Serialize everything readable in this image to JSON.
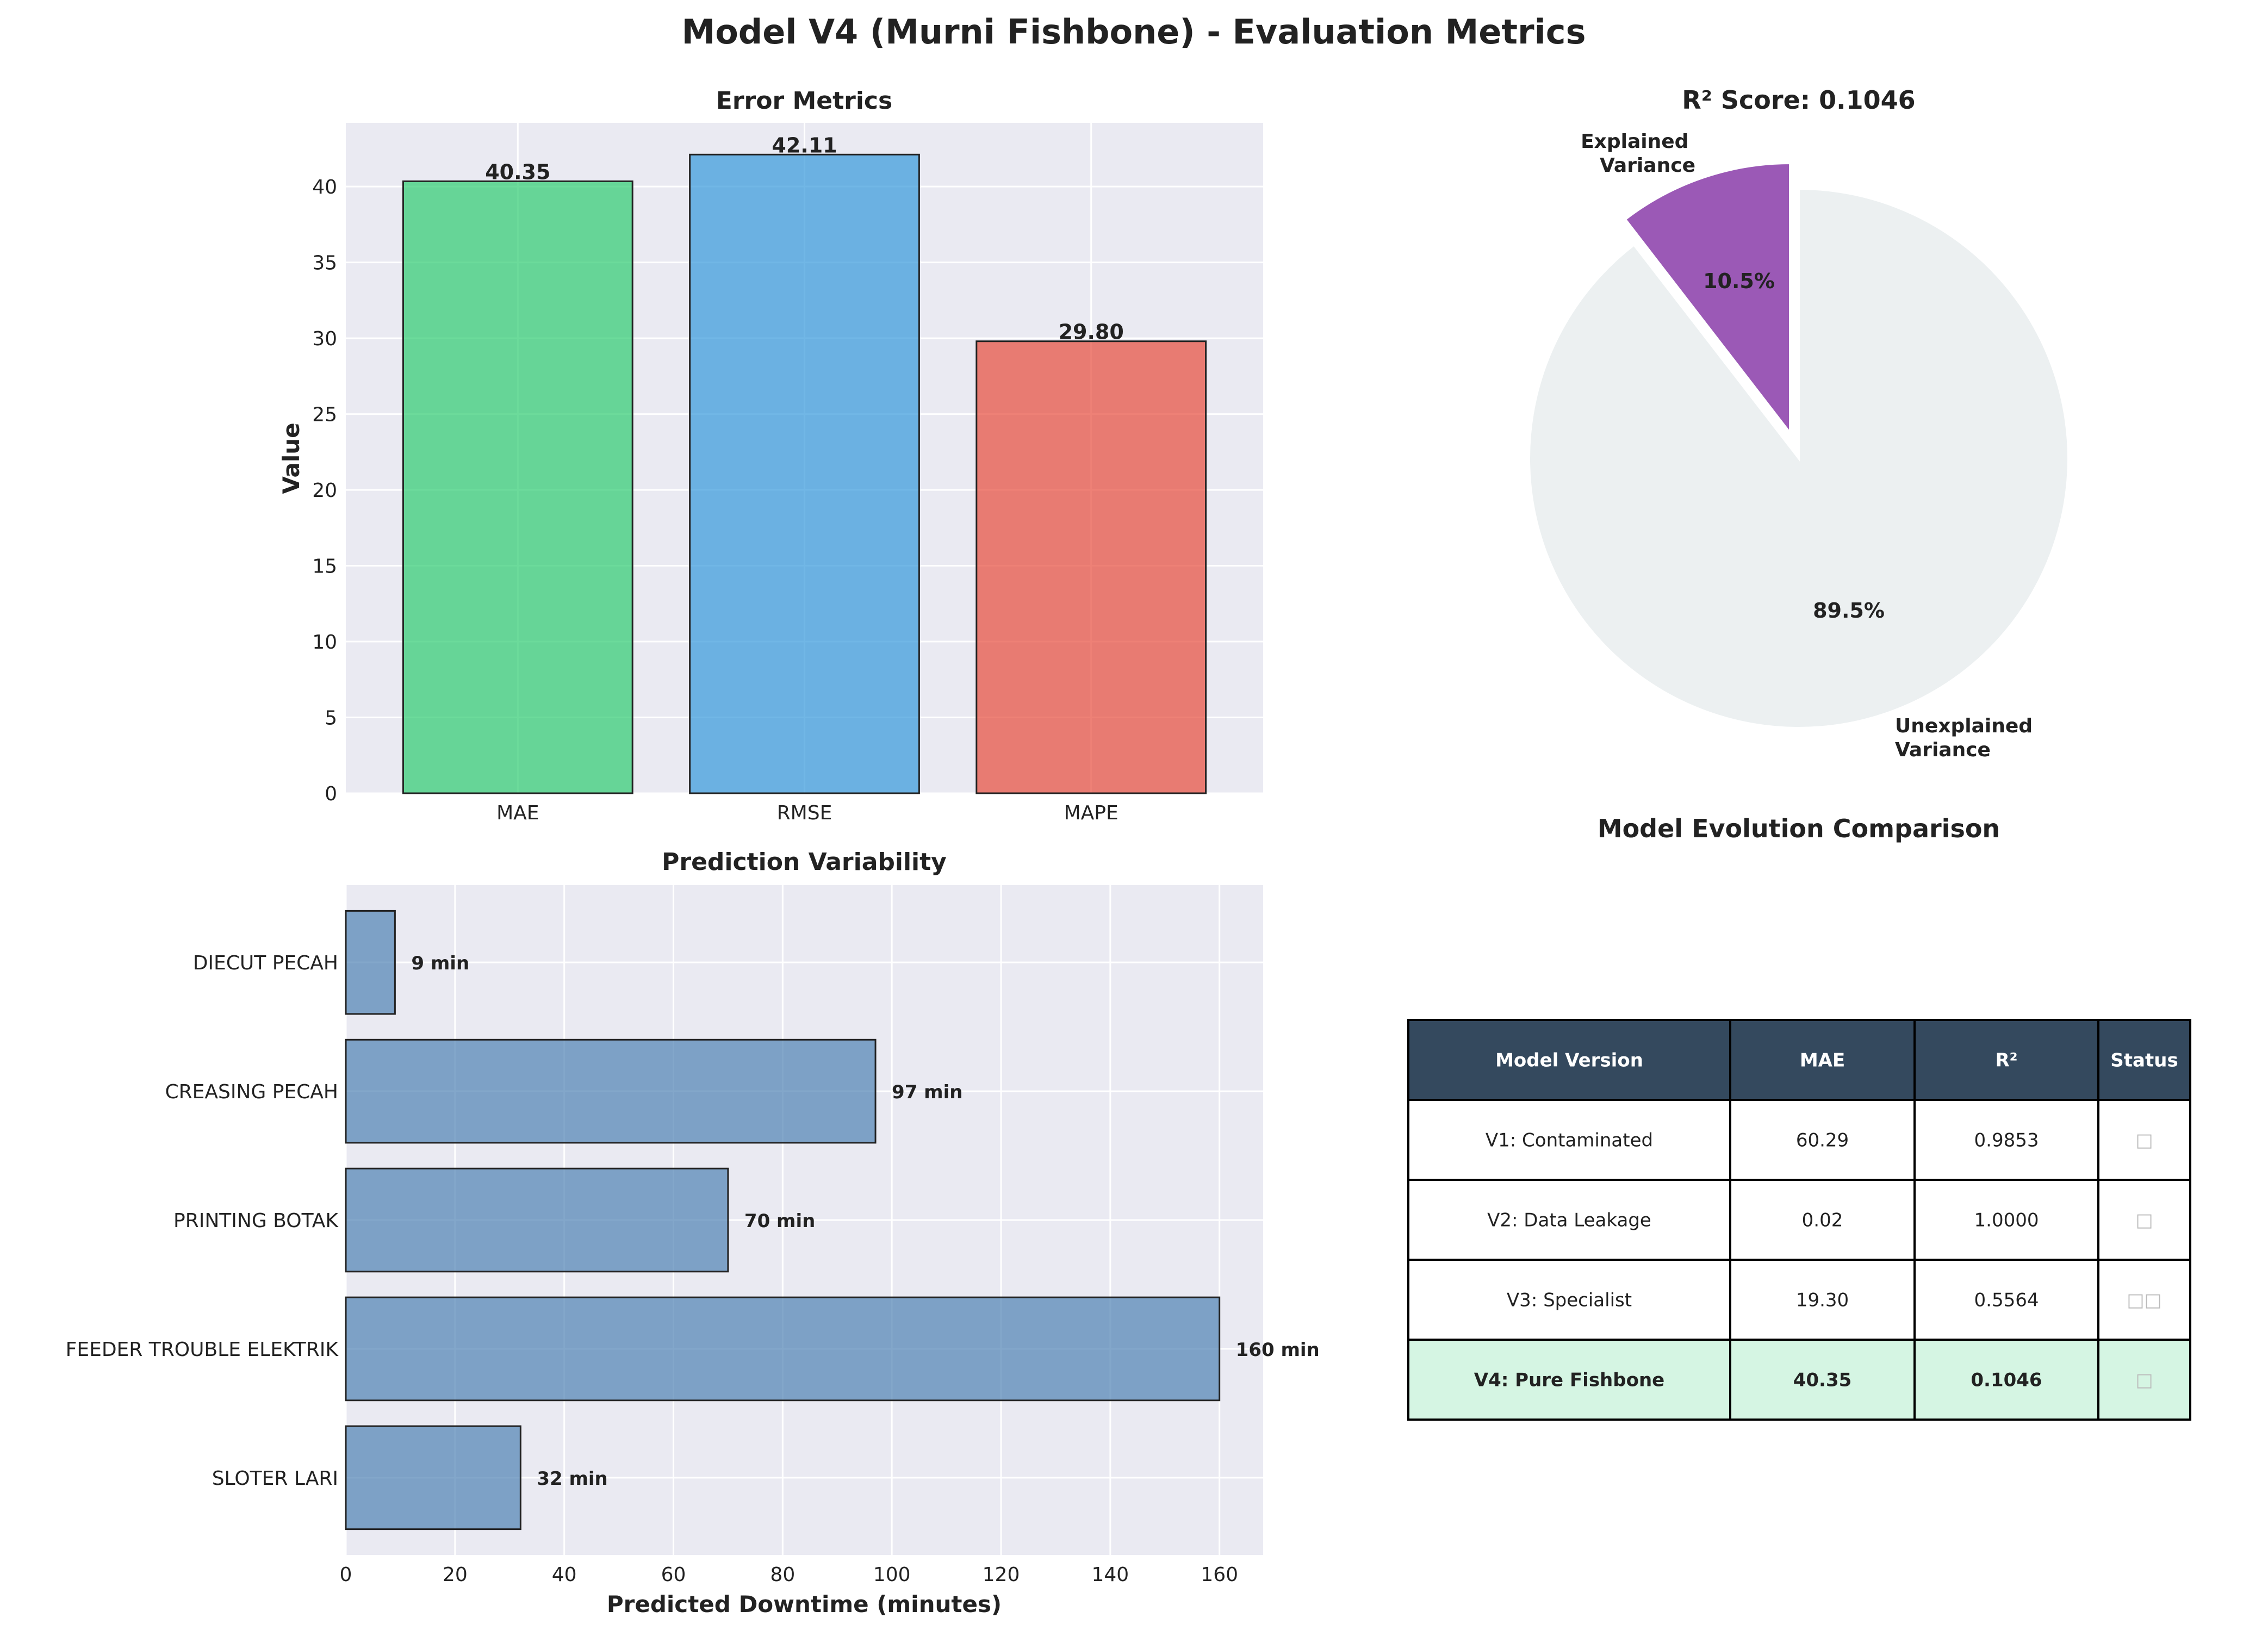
{
  "figure": {
    "title": "Model V4 (Murni Fishbone) - Evaluation Metrics"
  },
  "colors": {
    "panel_bg": "#EAEAF2",
    "grid": "#ffffff",
    "mae": "#2ECC71",
    "rmse": "#3498DB",
    "mape": "#E74C3C",
    "hbar": "#4F81B4",
    "pie_explained": "#9B59B6",
    "pie_unexplained": "#ECF0F1",
    "table_header": "#34495E",
    "table_highlight": "#D5F5E3"
  },
  "chart_data": [
    {
      "type": "bar",
      "title": "Error Metrics",
      "xlabel": "",
      "ylabel": "Value",
      "categories": [
        "MAE",
        "RMSE",
        "MAPE"
      ],
      "values": [
        40.35,
        42.11,
        29.8
      ],
      "value_labels": [
        "40.35",
        "42.11",
        "29.80"
      ],
      "ylim": [
        0,
        44.2
      ],
      "yticks": [
        0,
        5,
        10,
        15,
        20,
        25,
        30,
        35,
        40
      ],
      "grid": true
    },
    {
      "type": "pie",
      "title": "R² Score: 0.1046",
      "labels": [
        "Explained\nVariance",
        "Unexplained\nVariance"
      ],
      "values": [
        10.46,
        89.54
      ],
      "pct_labels": [
        "10.5%",
        "89.5%"
      ],
      "explode": [
        0.1,
        0
      ]
    },
    {
      "type": "bar",
      "orientation": "horizontal",
      "title": "Prediction Variability",
      "xlabel": "Predicted Downtime (minutes)",
      "ylabel": "",
      "categories": [
        "SLOTER LARI",
        "FEEDER TROUBLE ELEKTRIK",
        "PRINTING BOTAK",
        "CREASING PECAH",
        "DIECUT PECAH"
      ],
      "values": [
        32,
        160,
        70,
        97,
        9
      ],
      "value_labels": [
        "32 min",
        "160 min",
        "70 min",
        "97 min",
        "9 min"
      ],
      "xlim": [
        0,
        168
      ],
      "xticks": [
        0,
        20,
        40,
        60,
        80,
        100,
        120,
        140,
        160
      ],
      "grid": true
    },
    {
      "type": "table",
      "title": "Model Evolution Comparison",
      "columns": [
        "Model Version",
        "MAE",
        "R²",
        "Status"
      ],
      "rows": [
        [
          "V1: Contaminated",
          "60.29",
          "0.9853",
          "□"
        ],
        [
          "V2: Data Leakage",
          "0.02",
          "1.0000",
          "□"
        ],
        [
          "V3: Specialist",
          "19.30",
          "0.5564",
          "□□"
        ],
        [
          "V4: Pure Fishbone",
          "40.35",
          "0.1046",
          "□"
        ]
      ],
      "highlight_row": 3
    }
  ]
}
